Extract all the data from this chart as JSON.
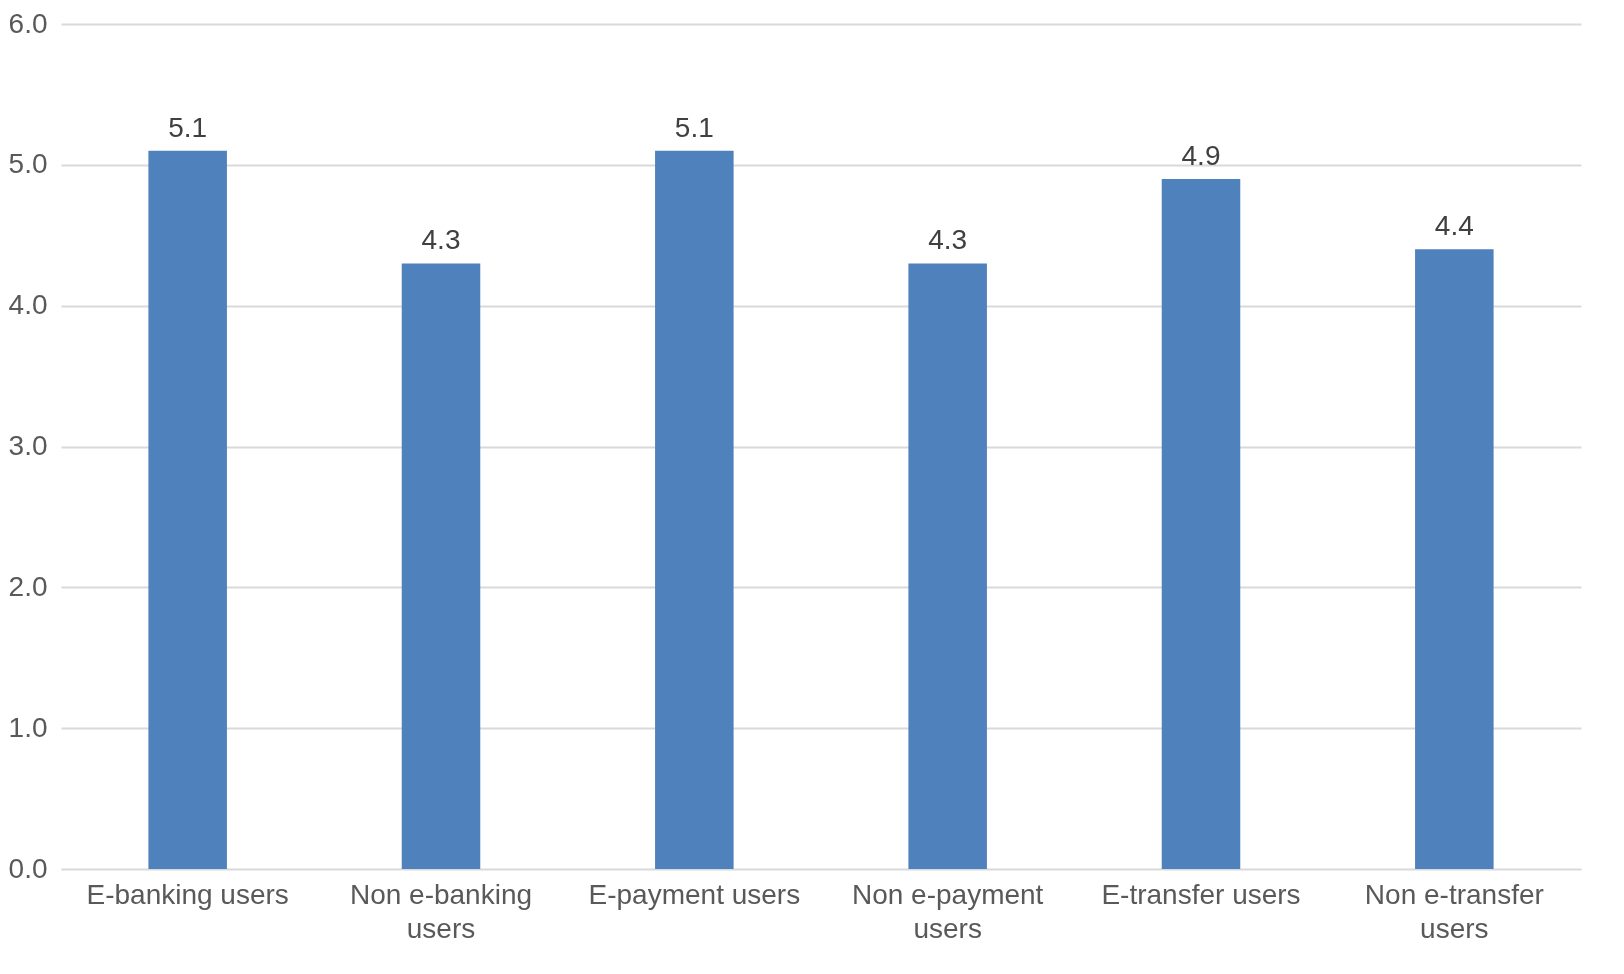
{
  "chart_data": {
    "type": "bar",
    "categories": [
      "E-banking users",
      "Non e-banking users",
      "E-payment users",
      "Non e-payment users",
      "E-transfer users",
      "Non e-transfer users"
    ],
    "values": [
      5.1,
      4.3,
      5.1,
      4.3,
      4.9,
      4.4
    ],
    "color": "#4f81bd",
    "ylim": [
      0,
      6
    ],
    "yticks": [
      {
        "value": 0,
        "label": "0.0"
      },
      {
        "value": 1,
        "label": "1.0"
      },
      {
        "value": 2,
        "label": "2.0"
      },
      {
        "value": 3,
        "label": "3.0"
      },
      {
        "value": 4,
        "label": "4.0"
      },
      {
        "value": 5,
        "label": "5.0"
      },
      {
        "value": 6,
        "label": "6.0"
      }
    ],
    "grid": "y",
    "data_labels": true
  }
}
